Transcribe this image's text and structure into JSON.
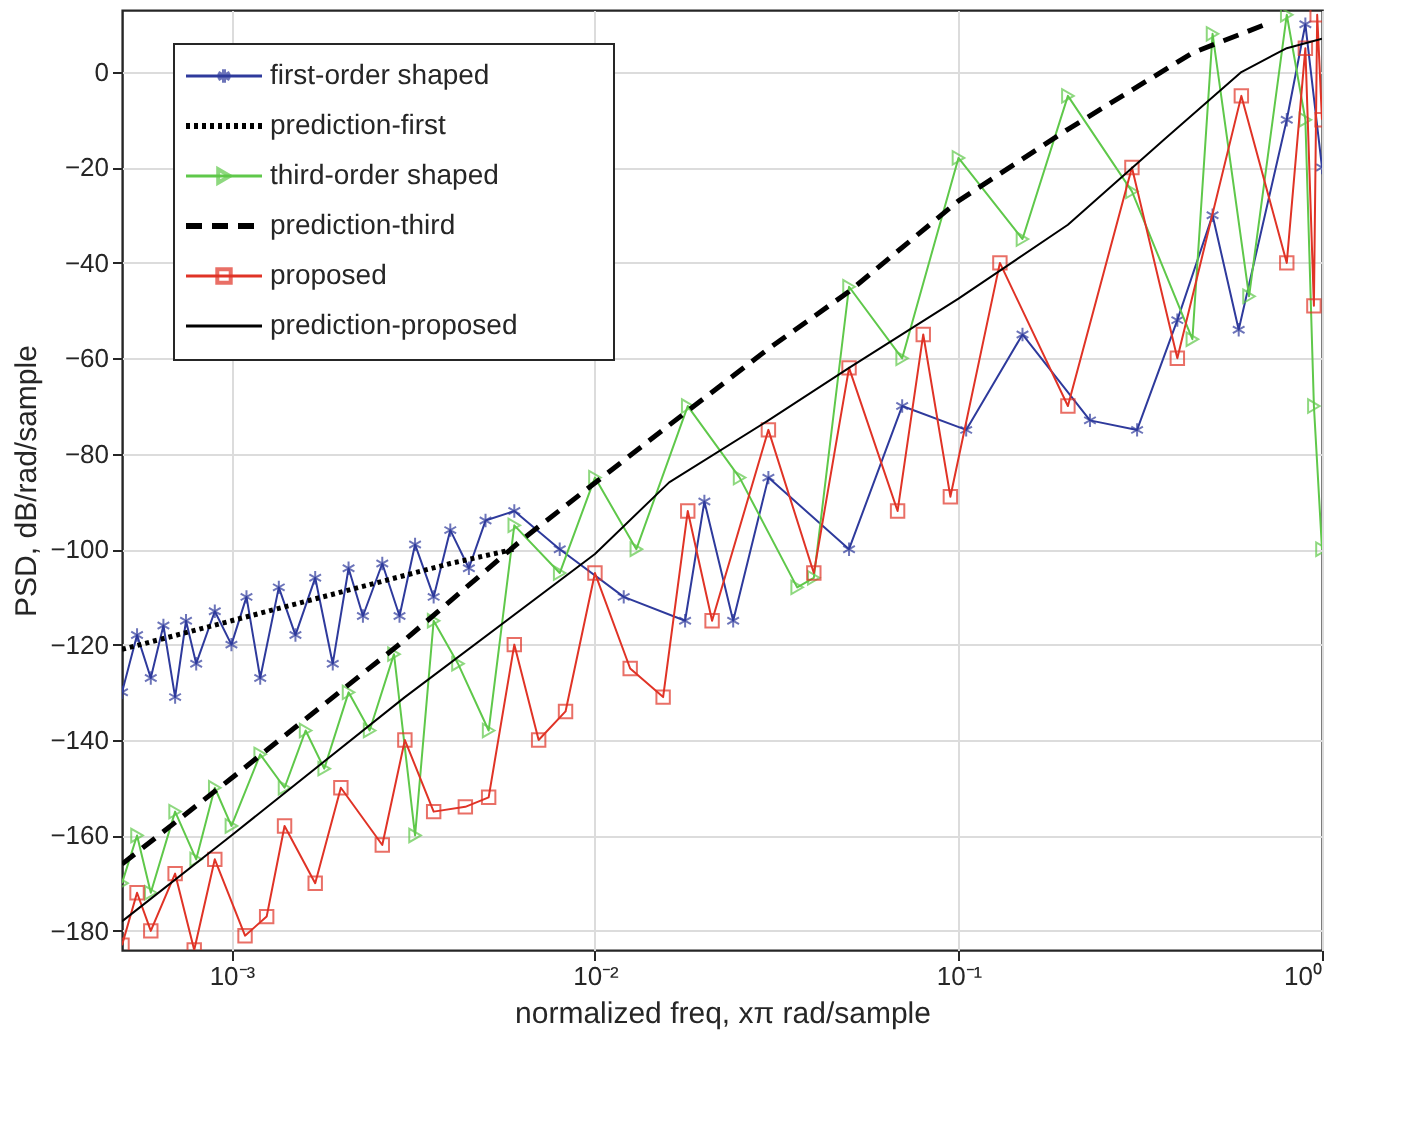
{
  "chart_data": {
    "type": "line",
    "xlabel": "normalized freq, xπ rad/sample",
    "ylabel": "PSD, dB/rad/sample",
    "log": "x",
    "grid": true,
    "legend": "top left",
    "xlim": [
      0.0005,
      1
    ],
    "ylim": [
      -184,
      13
    ],
    "xticks": [
      {
        "value": 0.001,
        "label": "10⁻³"
      },
      {
        "value": 0.01,
        "label": "10⁻²"
      },
      {
        "value": 0.1,
        "label": "10⁻¹"
      },
      {
        "value": 1,
        "label": "10⁰"
      }
    ],
    "yticks": [
      -180,
      -160,
      -140,
      -120,
      -100,
      -80,
      -60,
      -40,
      -20,
      0
    ],
    "series": [
      {
        "name": "first-order shaped",
        "color": "#2e3a9c",
        "marker": "cross",
        "line_style": "solid",
        "x": [
          0.0005,
          0.00055,
          0.0006,
          0.00065,
          0.0007,
          0.00075,
          0.0008,
          0.0009,
          0.001,
          0.0011,
          0.0012,
          0.00135,
          0.0015,
          0.0017,
          0.0019,
          0.0021,
          0.0023,
          0.0026,
          0.0029,
          0.0032,
          0.0036,
          0.004,
          0.0045,
          0.005,
          0.006,
          0.008,
          0.012,
          0.0177,
          0.02,
          0.024,
          0.03,
          0.05,
          0.07,
          0.105,
          0.15,
          0.23,
          0.31,
          0.4,
          0.5,
          0.59,
          0.8,
          0.9,
          1
        ],
        "values": [
          -130,
          -118,
          -127,
          -116,
          -131,
          -115,
          -124,
          -113,
          -120,
          -110,
          -127,
          -108,
          -118,
          -106,
          -124,
          -104,
          -114,
          -103,
          -114,
          -99,
          -110,
          -96,
          -104,
          -94,
          -92,
          -100,
          -110,
          -115,
          -90,
          -115,
          -85,
          -100,
          -70,
          -75,
          -55,
          -73,
          -75,
          -52,
          -30,
          -54,
          -10,
          10,
          -20
        ]
      },
      {
        "name": "prediction-first",
        "color": "#000000",
        "marker": "none",
        "line_style": "dotted",
        "x": [
          0.0005,
          0.001,
          0.002,
          0.004,
          0.006
        ],
        "values": [
          -121,
          -115,
          -109,
          -103,
          -100
        ]
      },
      {
        "name": "third-order shaped",
        "color": "#5fc84a",
        "marker": "triangle",
        "line_style": "solid",
        "x": [
          0.0005,
          0.00055,
          0.0006,
          0.0007,
          0.0008,
          0.0009,
          0.001,
          0.0012,
          0.0014,
          0.0016,
          0.0018,
          0.0021,
          0.0024,
          0.0028,
          0.0032,
          0.0036,
          0.0042,
          0.0051,
          0.006,
          0.008,
          0.01,
          0.013,
          0.018,
          0.025,
          0.036,
          0.04,
          0.05,
          0.07,
          0.1,
          0.15,
          0.2,
          0.3,
          0.44,
          0.5,
          0.63,
          0.8,
          0.9,
          0.95,
          1
        ],
        "values": [
          -170,
          -160,
          -172,
          -155,
          -165,
          -150,
          -158,
          -143,
          -150,
          -138,
          -146,
          -130,
          -138,
          -122,
          -160,
          -115,
          -124,
          -138,
          -95,
          -105,
          -85,
          -100,
          -70,
          -85,
          -108,
          -106,
          -45,
          -60,
          -18,
          -35,
          -5,
          -25,
          -56,
          8,
          -47,
          12,
          -10,
          -70,
          -100
        ]
      },
      {
        "name": "prediction-third",
        "color": "#000000",
        "marker": "none",
        "line_style": "dashed",
        "x": [
          0.0005,
          0.001,
          0.003,
          0.0063,
          0.016,
          0.03,
          0.05,
          0.1,
          0.2,
          0.44,
          0.7
        ],
        "values": [
          -166,
          -148,
          -119,
          -98,
          -74,
          -58,
          -46,
          -27,
          -12,
          4,
          10
        ]
      },
      {
        "name": "proposed",
        "color": "#e03326",
        "marker": "square",
        "line_style": "solid",
        "x": [
          0.0005,
          0.00055,
          0.0006,
          0.0007,
          0.00079,
          0.0009,
          0.00109,
          0.00125,
          0.0014,
          0.0017,
          0.002,
          0.0026,
          0.003,
          0.0036,
          0.0044,
          0.0051,
          0.006,
          0.007,
          0.0083,
          0.01,
          0.0125,
          0.0154,
          0.018,
          0.021,
          0.03,
          0.04,
          0.05,
          0.068,
          0.08,
          0.095,
          0.13,
          0.2,
          0.3,
          0.4,
          0.6,
          0.8,
          0.9,
          0.95,
          0.97,
          1
        ],
        "values": [
          -183,
          -172,
          -180,
          -168,
          -184,
          -165,
          -181,
          -177,
          -158,
          -170,
          -150,
          -162,
          -140,
          -155,
          -154,
          -152,
          -120,
          -140,
          -134,
          -105,
          -125,
          -131,
          -92,
          -115,
          -75,
          -105,
          -62,
          -92,
          -55,
          -89,
          -40,
          -70,
          -20,
          -60,
          -5,
          -40,
          5,
          -49,
          12,
          -10
        ]
      },
      {
        "name": "prediction-proposed",
        "color": "#000000",
        "marker": "none",
        "line_style": "solid",
        "x": [
          0.0005,
          0.001,
          0.003,
          0.01,
          0.016,
          0.03,
          0.05,
          0.1,
          0.2,
          0.37,
          0.6,
          0.8,
          1
        ],
        "values": [
          -178,
          -160,
          -131,
          -101,
          -86,
          -73,
          -62,
          -47.5,
          -32,
          -14,
          0,
          5,
          7
        ]
      }
    ]
  }
}
